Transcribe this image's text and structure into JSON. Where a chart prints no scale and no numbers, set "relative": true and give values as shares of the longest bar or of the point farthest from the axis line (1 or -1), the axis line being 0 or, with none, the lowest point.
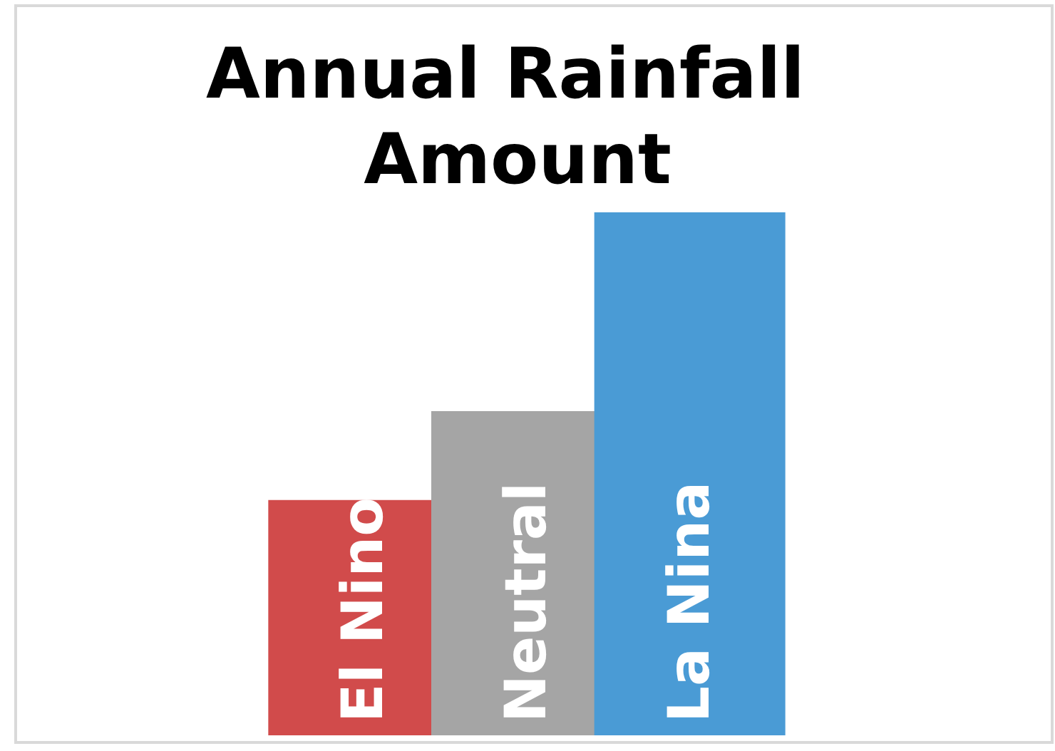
{
  "chart_data": {
    "type": "bar",
    "title": "Annual Rainfall Amount",
    "categories": [
      "El Nino",
      "Neutral",
      "La Nina"
    ],
    "values": [
      0.45,
      0.62,
      1
    ],
    "colors": [
      "#d14b4b",
      "#a5a5a5",
      "#4a9bd5"
    ],
    "relative": true
  }
}
